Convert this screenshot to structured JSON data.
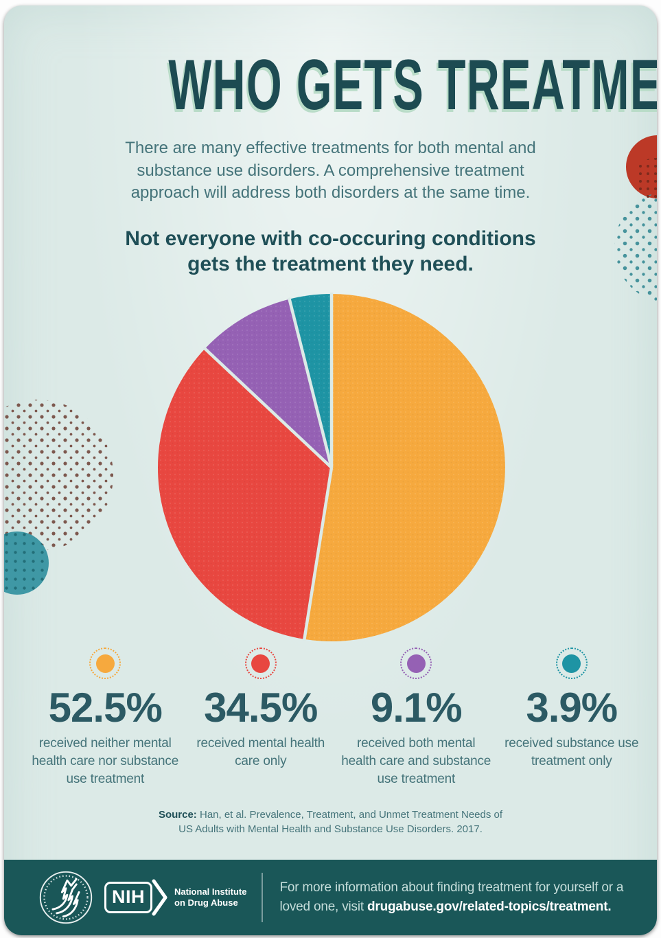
{
  "title": "WHO GETS TREATMENT?",
  "intro": "There are many effective treatments for both mental and substance use disorders. A comprehensive treatment approach will address both disorders at the same time.",
  "subtitle": "Not everyone with co-occuring conditions gets the treatment they need.",
  "chart_data": {
    "type": "pie",
    "title": "Not everyone with co-occuring conditions gets the treatment they need.",
    "start_angle_deg": 0,
    "direction": "clockwise",
    "slice_gap": true,
    "slices": [
      {
        "label": "received neither mental health care nor substance use treatment",
        "value": 52.5,
        "color": "#F6A93E"
      },
      {
        "label": "received mental health care only",
        "value": 34.5,
        "color": "#E84740"
      },
      {
        "label": "received both mental health care and substance use treatment",
        "value": 9.1,
        "color": "#9561B4"
      },
      {
        "label": "received substance use treatment only",
        "value": 3.9,
        "color": "#1E94A4"
      }
    ]
  },
  "stats": [
    {
      "pct": "52.5%",
      "desc": "received neither mental health care nor substance use treatment",
      "color": "#F6A93E"
    },
    {
      "pct": "34.5%",
      "desc": "received mental health care only",
      "color": "#E84740"
    },
    {
      "pct": "9.1%",
      "desc": "received both mental health care and substance use treatment",
      "color": "#9561B4"
    },
    {
      "pct": "3.9%",
      "desc": "received substance use treatment only",
      "color": "#1E94A4"
    }
  ],
  "source": {
    "label": "Source:",
    "text": " Han, et al. Prevalence, Treatment, and Unmet Treatment Needs of US Adults with Mental Health and Substance Use Disorders. 2017."
  },
  "footer": {
    "nih_acronym": "NIH",
    "nih_name_line1": "National Institute",
    "nih_name_line2": "on Drug Abuse",
    "info_text": "For more information about finding treatment for yourself or a loved one, visit ",
    "info_link": "drugabuse.gov/related-topics/treatment."
  },
  "colors": {
    "page_bg": "#DCEAE7",
    "ink_title": "#1D4B52",
    "title_shadow": "#B9DCC8",
    "ink_subtitle": "#1F4F57",
    "ink_body": "#45747A",
    "ink_stat": "#2C5A64",
    "footer_bg": "#1A5758",
    "footer_text": "#C5DDDA",
    "deco_red": "#BC3927",
    "deco_red_dot": "#7E2A1C",
    "deco_teal_dot": "#46939C",
    "deco_brown_dot": "#7D584E",
    "deco_teal": "#3F98A5",
    "deco_teal_circle_dot": "#1D6670"
  }
}
